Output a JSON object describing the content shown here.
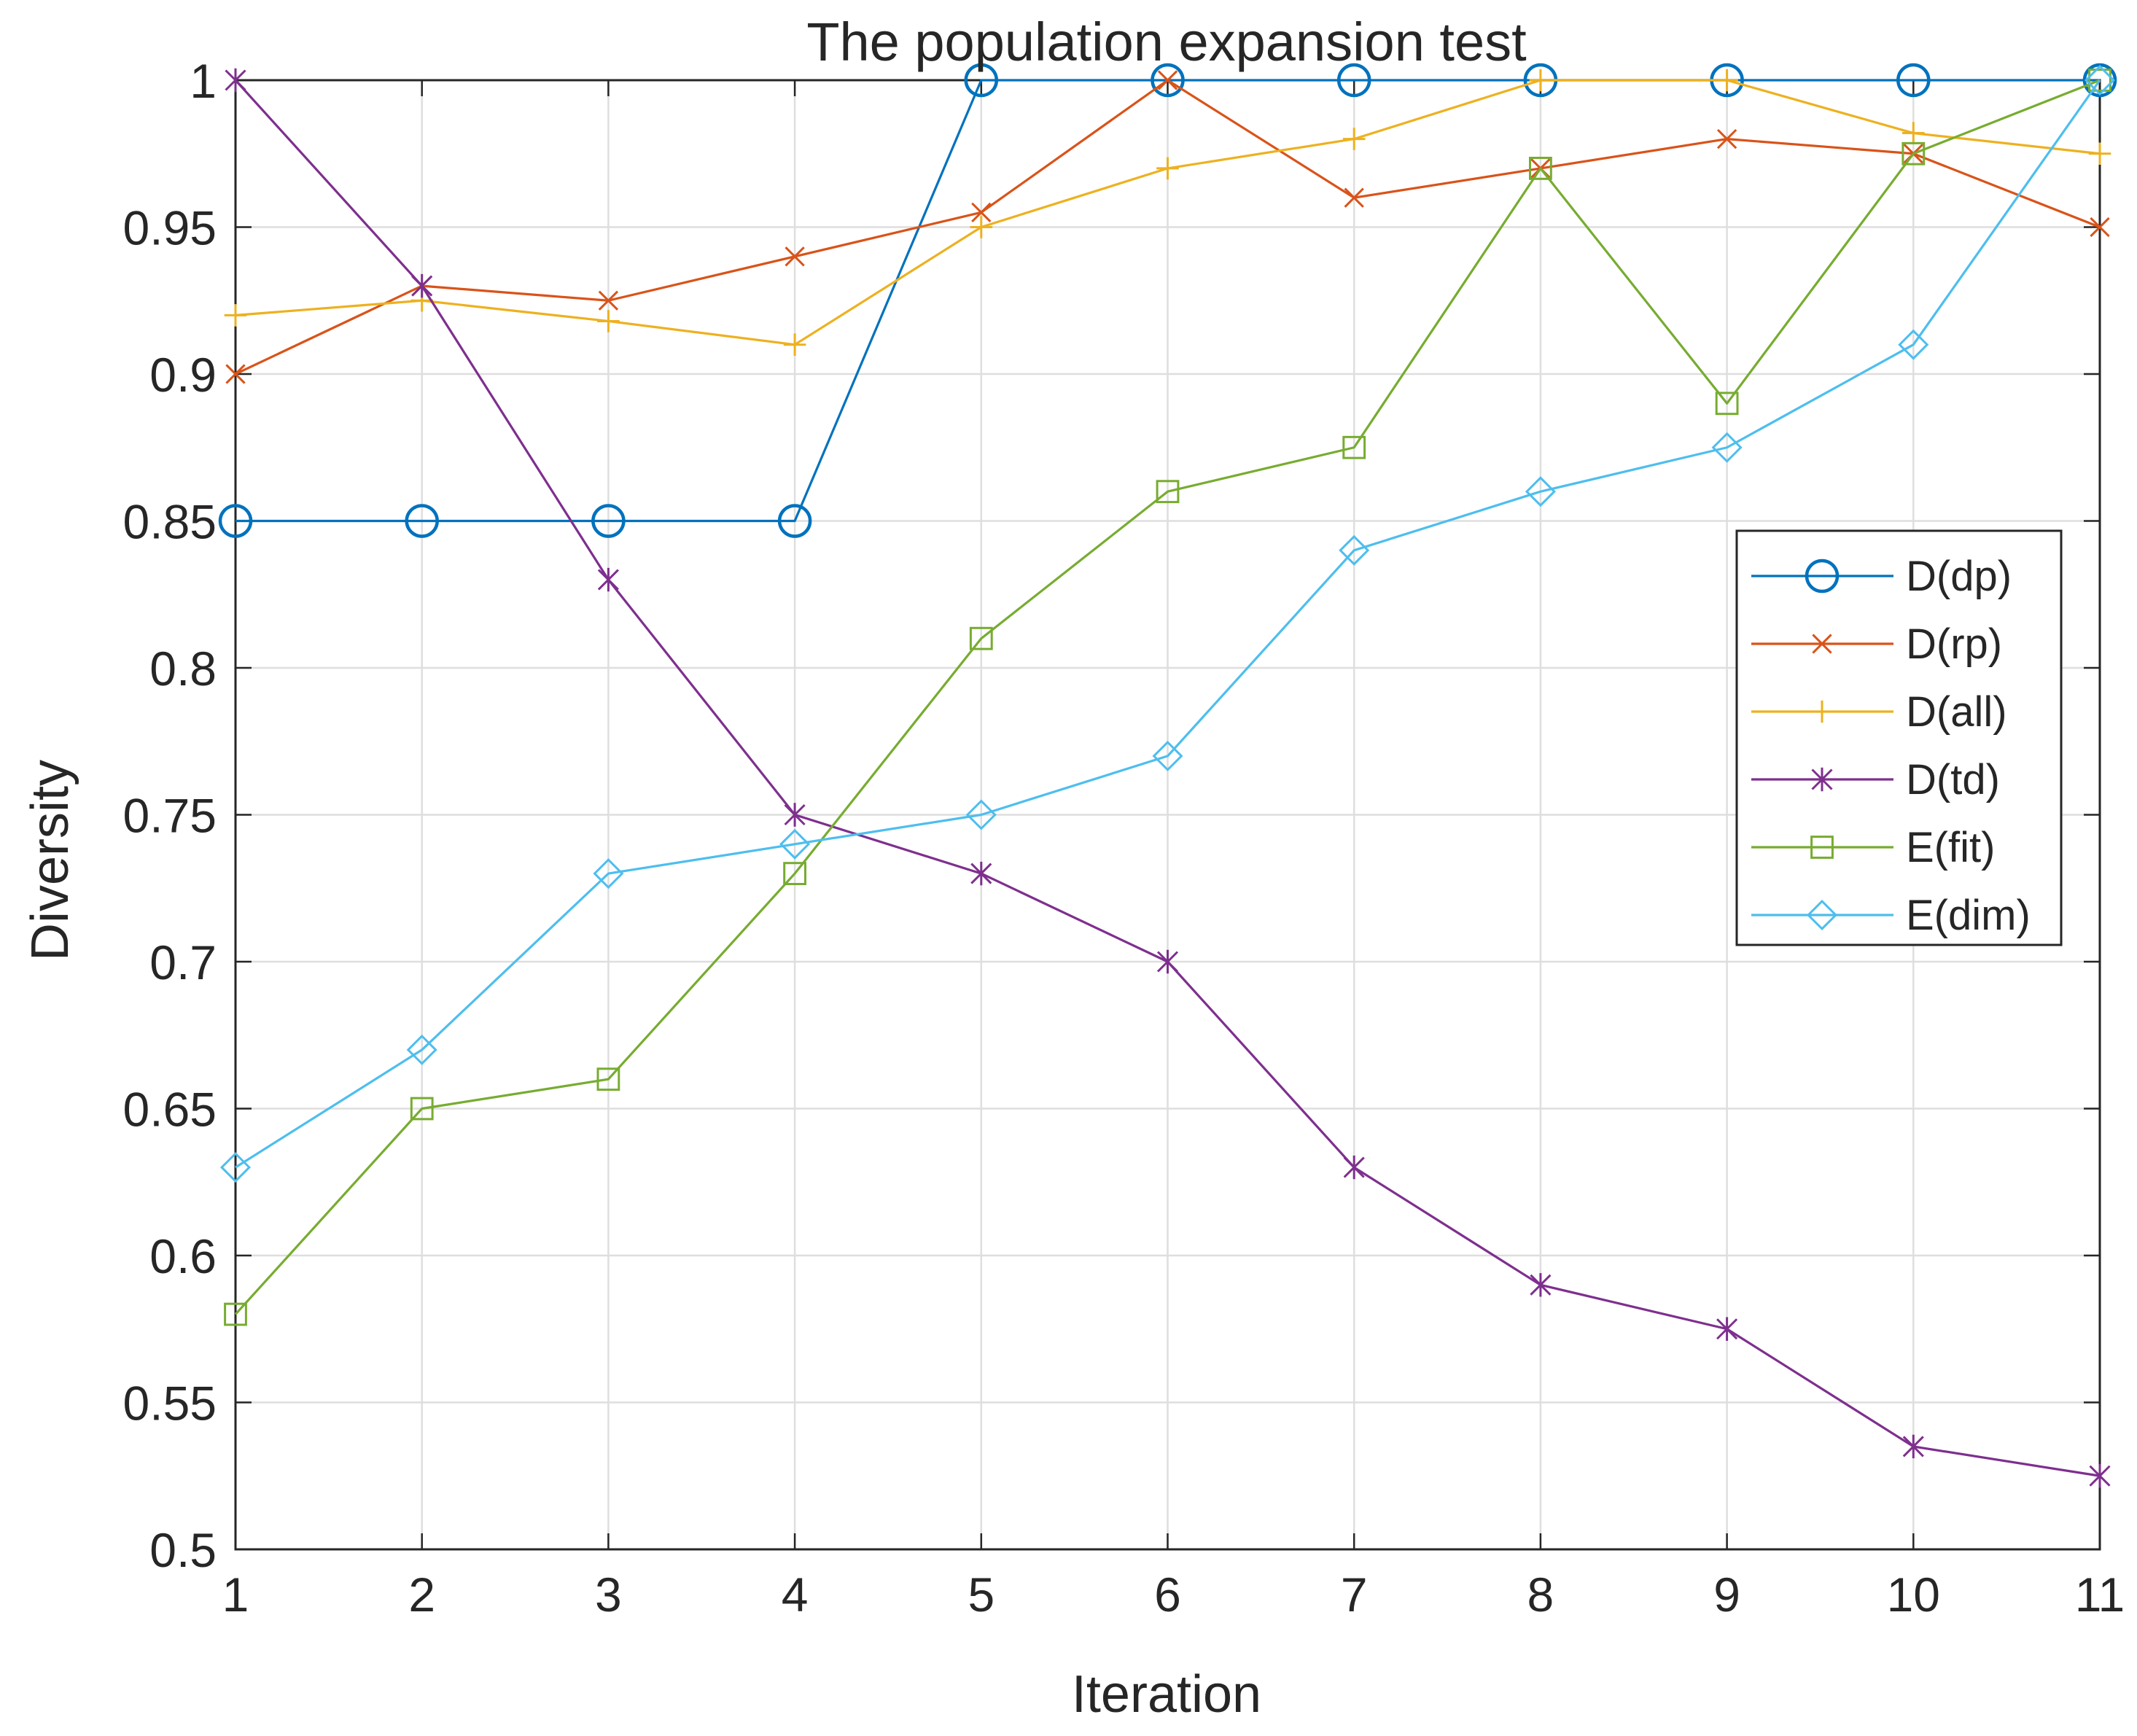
{
  "chart_data": {
    "type": "line",
    "title": "The population expansion test",
    "xlabel": "Iteration",
    "ylabel": "Diversity",
    "xlim": [
      1,
      11
    ],
    "ylim": [
      0.5,
      1
    ],
    "x": [
      1,
      2,
      3,
      4,
      5,
      6,
      7,
      8,
      9,
      10,
      11
    ],
    "xticks": [
      "1",
      "2",
      "3",
      "4",
      "5",
      "6",
      "7",
      "8",
      "9",
      "10",
      "11"
    ],
    "yticks": [
      "0.5",
      "0.55",
      "0.6",
      "0.65",
      "0.7",
      "0.75",
      "0.8",
      "0.85",
      "0.9",
      "0.95",
      "1"
    ],
    "grid": true,
    "legend_position": "right",
    "series": [
      {
        "name": "D(dp)",
        "marker": "circle",
        "color": "#0072BD",
        "values": [
          0.85,
          0.85,
          0.85,
          0.85,
          1.0,
          1.0,
          1.0,
          1.0,
          1.0,
          1.0,
          1.0
        ]
      },
      {
        "name": "D(rp)",
        "marker": "x",
        "color": "#D95319",
        "values": [
          0.9,
          0.93,
          0.925,
          0.94,
          0.955,
          1.0,
          0.96,
          0.97,
          0.98,
          0.975,
          0.95
        ]
      },
      {
        "name": "D(all)",
        "marker": "plus",
        "color": "#EDB120",
        "values": [
          0.92,
          0.925,
          0.918,
          0.91,
          0.95,
          0.97,
          0.98,
          1.0,
          1.0,
          0.982,
          0.975
        ]
      },
      {
        "name": "D(td)",
        "marker": "star",
        "color": "#7E2F8E",
        "values": [
          1.0,
          0.93,
          0.83,
          0.75,
          0.73,
          0.7,
          0.63,
          0.59,
          0.575,
          0.535,
          0.525
        ]
      },
      {
        "name": "E(fit)",
        "marker": "square",
        "color": "#77AC30",
        "values": [
          0.58,
          0.65,
          0.66,
          0.73,
          0.81,
          0.86,
          0.875,
          0.97,
          0.89,
          0.975,
          1.0
        ]
      },
      {
        "name": "E(dim)",
        "marker": "diamond",
        "color": "#4DBEEE",
        "values": [
          0.63,
          0.67,
          0.73,
          0.74,
          0.75,
          0.77,
          0.84,
          0.86,
          0.875,
          0.91,
          1.0
        ]
      }
    ]
  }
}
